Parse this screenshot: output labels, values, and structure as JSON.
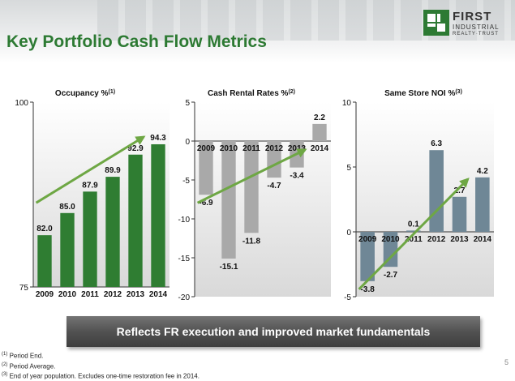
{
  "slide": {
    "title": "Key Portfolio Cash Flow Metrics",
    "tagline": "Reflects FR execution and improved market fundamentals",
    "page_number": "5"
  },
  "logo": {
    "line1": "FIRST",
    "line2": "INDUSTRIAL",
    "line3": "REALTY·TRUST"
  },
  "footnotes": [
    {
      "marker": "(1)",
      "text": "Period End."
    },
    {
      "marker": "(2)",
      "text": "Period Average."
    },
    {
      "marker": "(3)",
      "text": "End of year population.  Excludes one-time restoration fee in 2014."
    }
  ],
  "colors": {
    "title_green": "#2d7a33",
    "bar_green": "#2f7d32",
    "bar_gray": "#a9a9a9",
    "bar_slate": "#6f8796",
    "trend_arrow": "#6ea744"
  },
  "chart_data": [
    {
      "type": "bar",
      "title": "Occupancy %",
      "title_footnote": "(1)",
      "categories": [
        "2009",
        "2010",
        "2011",
        "2012",
        "2013",
        "2014"
      ],
      "values": [
        82.0,
        85.0,
        87.9,
        89.9,
        92.9,
        94.3
      ],
      "value_labels": [
        "82.0",
        "85.0",
        "87.9",
        "89.9",
        "92.9",
        "94.3"
      ],
      "ylim": [
        75,
        100
      ],
      "yticks": [
        "75",
        "100"
      ],
      "grid": false,
      "trend_arrow": true,
      "bar_color": "#2f7d32"
    },
    {
      "type": "bar",
      "title": "Cash Rental Rates %",
      "title_footnote": "(2)",
      "categories": [
        "2009",
        "2010",
        "2011",
        "2012",
        "2013",
        "2014"
      ],
      "values": [
        -6.9,
        -15.1,
        -11.8,
        -4.7,
        -3.4,
        2.2
      ],
      "value_labels": [
        "-6.9",
        "-15.1",
        "-11.8",
        "-4.7",
        "-3.4",
        "2.2"
      ],
      "ylim": [
        -20,
        5
      ],
      "yticks": [
        "-20",
        "-15",
        "-10",
        "-5",
        "0",
        "5"
      ],
      "grid": false,
      "trend_arrow": true,
      "bar_color": "#a9a9a9"
    },
    {
      "type": "bar",
      "title": "Same Store NOI %",
      "title_footnote": "(3)",
      "categories": [
        "2009",
        "2010",
        "2011",
        "2012",
        "2013",
        "2014"
      ],
      "values": [
        -3.8,
        -2.7,
        0.1,
        6.3,
        2.7,
        4.2
      ],
      "value_labels": [
        "-3.8",
        "-2.7",
        "0.1",
        "6.3",
        "2.7",
        "4.2"
      ],
      "ylim": [
        -5,
        10
      ],
      "yticks": [
        "-5",
        "0",
        "5",
        "10"
      ],
      "grid": false,
      "trend_arrow": true,
      "bar_color": "#6f8796"
    }
  ]
}
